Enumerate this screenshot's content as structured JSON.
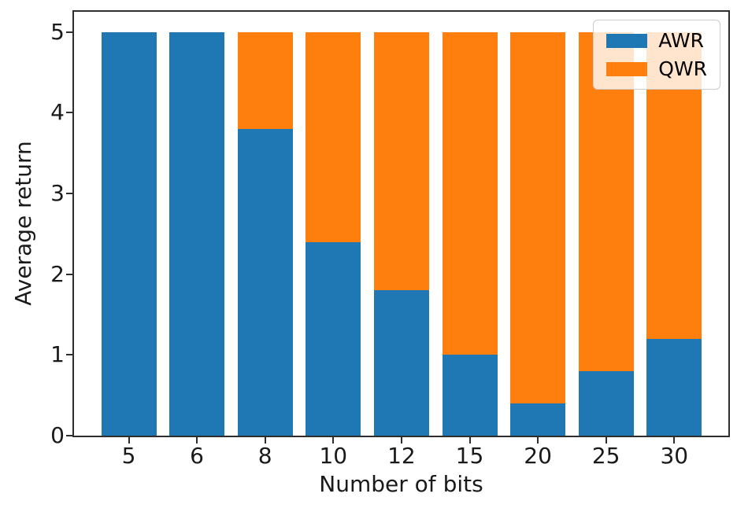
{
  "figure": {
    "background": "#ffffff",
    "axis_color": "#2e2e2e",
    "text_color": "#1a1a1a"
  },
  "chart_data": {
    "type": "bar",
    "stacked": true,
    "title": "",
    "xlabel": "Number of bits",
    "ylabel": "Average return",
    "categories": [
      "5",
      "6",
      "8",
      "10",
      "12",
      "15",
      "20",
      "25",
      "30"
    ],
    "series": [
      {
        "name": "AWR",
        "color": "#1f77b4",
        "values": [
          5.0,
          5.0,
          3.8,
          2.4,
          1.8,
          1.0,
          0.4,
          0.8,
          1.2
        ]
      },
      {
        "name": "QWR",
        "color": "#ff7f0e",
        "values": [
          0.0,
          0.0,
          1.2,
          2.6,
          3.2,
          4.0,
          4.6,
          4.2,
          3.8
        ]
      }
    ],
    "stack_total": 5.0,
    "yticks": [
      0,
      1,
      2,
      3,
      4,
      5
    ],
    "ylim": [
      0,
      5.25
    ],
    "grid": false,
    "legend": {
      "position": "upper right",
      "entries": [
        "AWR",
        "QWR"
      ]
    }
  }
}
